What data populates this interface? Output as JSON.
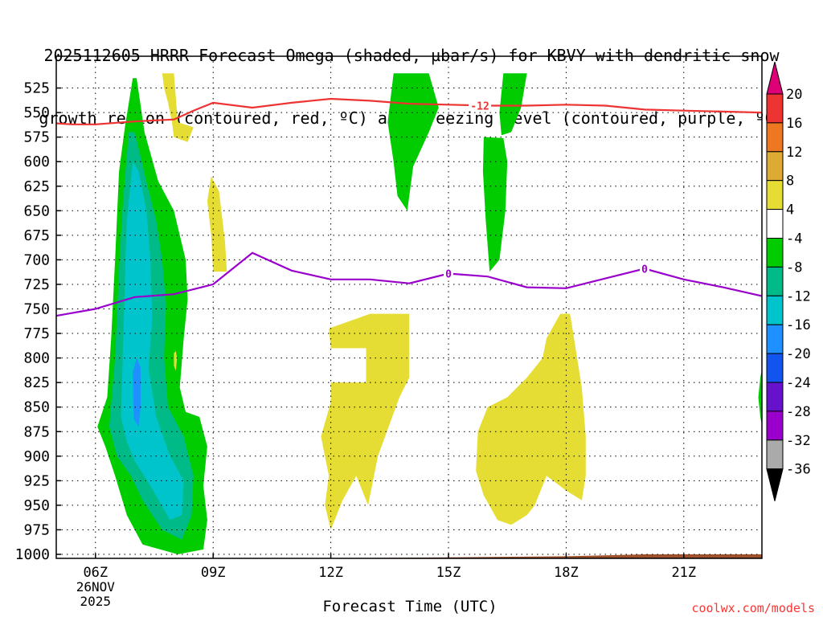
{
  "title": {
    "line1": "2025112605 HRRR Forecast Omega (shaded, µbar/s) for KBVY with dendritic snow",
    "line2": "growth region (contoured, red, ºC) and freezing level (contoured, purple, ºC)"
  },
  "footer": {
    "x_axis_title": "Forecast Time (UTC)",
    "credit": "coolwx.com/models"
  },
  "colors": {
    "dendritic_line": "#ee3333",
    "freezing_line": "#9900cc",
    "terrain": "#a0522d",
    "shade_yellow": "#e5dd33",
    "shade_green": "#00cc00",
    "shade_teal": "#00bb88",
    "shade_cyan": "#00c4cc",
    "shade_blue": "#1e90ff"
  },
  "chart_data": {
    "type": "time-height contour",
    "x_unit": "hour offset from 05Z 26NOV2025",
    "y_unit": "hPa",
    "xlim": [
      0,
      18
    ],
    "ylim": [
      1010,
      510
    ],
    "x_ticks": [
      {
        "h": 1,
        "label": "06Z",
        "sub1": "26NOV",
        "sub2": "2025"
      },
      {
        "h": 4,
        "label": "09Z"
      },
      {
        "h": 7,
        "label": "12Z"
      },
      {
        "h": 10,
        "label": "15Z"
      },
      {
        "h": 13,
        "label": "18Z"
      },
      {
        "h": 16,
        "label": "21Z"
      }
    ],
    "y_ticks": [
      525,
      550,
      575,
      600,
      625,
      650,
      675,
      700,
      725,
      750,
      775,
      800,
      825,
      850,
      875,
      900,
      925,
      950,
      975,
      1000
    ],
    "colorbar": {
      "label": "Omega (µbar/s)",
      "labels": [
        "20",
        "16",
        "12",
        "8",
        "4",
        "-4",
        "-8",
        "-12",
        "-16",
        "-20",
        "-24",
        "-28",
        "-32",
        "-36"
      ],
      "bins": [
        {
          "color": "#ee3333"
        },
        {
          "color": "#ee7722"
        },
        {
          "color": "#ddaa33"
        },
        {
          "color": "#e5dd33"
        },
        {
          "color": "#ffffff"
        },
        {
          "color": "#00cc00"
        },
        {
          "color": "#00bb88"
        },
        {
          "color": "#00c4cc"
        },
        {
          "color": "#1e90ff"
        },
        {
          "color": "#1155ee"
        },
        {
          "color": "#6611cc"
        },
        {
          "color": "#9900cc"
        },
        {
          "color": "#aaaaaa"
        }
      ],
      "top_color": "#dd0077",
      "bottom_color": "#000000"
    },
    "dendritic_line": {
      "label": "-12",
      "label_at": 10.8,
      "points": [
        [
          0,
          561
        ],
        [
          0.4,
          562
        ],
        [
          1.0,
          562
        ],
        [
          2.0,
          559
        ],
        [
          3.0,
          557
        ],
        [
          3.5,
          548
        ],
        [
          4.0,
          540
        ],
        [
          5.0,
          545
        ],
        [
          6.0,
          540
        ],
        [
          7.0,
          536
        ],
        [
          8.0,
          538
        ],
        [
          9.0,
          541
        ],
        [
          10.0,
          542
        ],
        [
          11.0,
          543
        ],
        [
          12.0,
          543
        ],
        [
          13.0,
          542
        ],
        [
          14.0,
          543
        ],
        [
          15.0,
          547
        ],
        [
          16.0,
          548
        ],
        [
          17.0,
          549
        ],
        [
          18.0,
          550
        ]
      ]
    },
    "freezing_line": {
      "label": "0",
      "label_at": [
        10.0,
        15.0
      ],
      "points": [
        [
          0,
          757
        ],
        [
          1.0,
          750
        ],
        [
          2.0,
          738
        ],
        [
          3.0,
          735
        ],
        [
          4.0,
          725
        ],
        [
          5.0,
          693
        ],
        [
          6.0,
          711
        ],
        [
          7.0,
          720
        ],
        [
          8.0,
          720
        ],
        [
          9.0,
          724
        ],
        [
          10.0,
          714
        ],
        [
          11.0,
          717
        ],
        [
          12.0,
          728
        ],
        [
          13.0,
          729
        ],
        [
          14.0,
          719
        ],
        [
          15.0,
          709
        ],
        [
          16.0,
          720
        ],
        [
          17.0,
          728
        ],
        [
          18.0,
          737
        ]
      ]
    },
    "terrain": {
      "points": [
        [
          0,
          1006
        ],
        [
          3.0,
          1005
        ],
        [
          4.0,
          1004
        ],
        [
          7.0,
          1004
        ],
        [
          10.0,
          1003
        ],
        [
          13.0,
          1002
        ],
        [
          15.0,
          1000
        ],
        [
          18.0,
          1000
        ]
      ]
    },
    "regions": [
      {
        "color": "#00cc00",
        "points": [
          [
            1.05,
            870
          ],
          [
            1.3,
            840
          ],
          [
            1.4,
            780
          ],
          [
            1.5,
            700
          ],
          [
            1.6,
            610
          ],
          [
            1.75,
            565
          ],
          [
            1.95,
            515
          ],
          [
            2.05,
            515
          ],
          [
            2.25,
            570
          ],
          [
            2.6,
            620
          ],
          [
            3.0,
            650
          ],
          [
            3.3,
            700
          ],
          [
            3.35,
            740
          ],
          [
            3.25,
            780
          ],
          [
            3.15,
            830
          ],
          [
            3.3,
            855
          ],
          [
            3.65,
            860
          ],
          [
            3.85,
            890
          ],
          [
            3.75,
            930
          ],
          [
            3.85,
            965
          ],
          [
            3.75,
            995
          ],
          [
            3.1,
            1000
          ],
          [
            2.2,
            990
          ],
          [
            1.8,
            960
          ],
          [
            1.5,
            920
          ],
          [
            1.25,
            890
          ]
        ]
      },
      {
        "color": "#00bb88",
        "points": [
          [
            1.35,
            870
          ],
          [
            1.5,
            800
          ],
          [
            1.6,
            710
          ],
          [
            1.7,
            640
          ],
          [
            1.85,
            570
          ],
          [
            2.0,
            570
          ],
          [
            2.3,
            620
          ],
          [
            2.55,
            660
          ],
          [
            2.7,
            700
          ],
          [
            2.8,
            745
          ],
          [
            2.75,
            800
          ],
          [
            2.85,
            850
          ],
          [
            3.25,
            880
          ],
          [
            3.5,
            920
          ],
          [
            3.45,
            960
          ],
          [
            3.2,
            985
          ],
          [
            2.7,
            975
          ],
          [
            2.2,
            945
          ],
          [
            1.9,
            920
          ],
          [
            1.55,
            900
          ]
        ]
      },
      {
        "color": "#00c4cc",
        "points": [
          [
            1.65,
            860
          ],
          [
            1.7,
            790
          ],
          [
            1.75,
            720
          ],
          [
            1.8,
            660
          ],
          [
            1.95,
            600
          ],
          [
            2.1,
            610
          ],
          [
            2.3,
            650
          ],
          [
            2.4,
            700
          ],
          [
            2.45,
            760
          ],
          [
            2.35,
            810
          ],
          [
            2.55,
            860
          ],
          [
            2.9,
            900
          ],
          [
            3.25,
            925
          ],
          [
            3.2,
            960
          ],
          [
            2.9,
            965
          ],
          [
            2.4,
            930
          ],
          [
            2.0,
            905
          ],
          [
            1.8,
            885
          ]
        ]
      },
      {
        "color": "#1e90ff",
        "points": [
          [
            1.95,
            815
          ],
          [
            2.05,
            800
          ],
          [
            2.15,
            810
          ],
          [
            2.15,
            850
          ],
          [
            2.1,
            870
          ],
          [
            1.98,
            862
          ]
        ]
      },
      {
        "color": "#e5dd33",
        "points": [
          [
            2.7,
            510
          ],
          [
            3.0,
            510
          ],
          [
            3.05,
            535
          ],
          [
            3.1,
            560
          ],
          [
            3.5,
            565
          ],
          [
            3.35,
            580
          ],
          [
            3.0,
            575
          ],
          [
            2.95,
            560
          ],
          [
            2.85,
            540
          ],
          [
            2.75,
            525
          ]
        ]
      },
      {
        "color": "#e5dd33",
        "points": [
          [
            3.85,
            640
          ],
          [
            3.95,
            615
          ],
          [
            4.15,
            630
          ],
          [
            4.3,
            680
          ],
          [
            4.35,
            712
          ],
          [
            4.0,
            712
          ],
          [
            3.95,
            675
          ]
        ]
      },
      {
        "color": "#e5dd33",
        "points": [
          [
            3.0,
            795
          ],
          [
            3.05,
            793
          ],
          [
            3.08,
            800
          ],
          [
            3.05,
            813
          ],
          [
            3.0,
            808
          ]
        ]
      },
      {
        "color": "#00cc00",
        "points": [
          [
            8.6,
            510
          ],
          [
            9.5,
            510
          ],
          [
            9.75,
            545
          ],
          [
            9.5,
            570
          ],
          [
            9.1,
            605
          ],
          [
            8.95,
            650
          ],
          [
            8.7,
            635
          ],
          [
            8.6,
            600
          ],
          [
            8.45,
            560
          ]
        ]
      },
      {
        "color": "#00cc00",
        "points": [
          [
            11.4,
            510
          ],
          [
            12.0,
            510
          ],
          [
            11.85,
            545
          ],
          [
            11.6,
            570
          ],
          [
            11.35,
            573
          ],
          [
            11.3,
            550
          ]
        ]
      },
      {
        "color": "#00cc00",
        "points": [
          [
            10.9,
            575
          ],
          [
            11.4,
            576
          ],
          [
            11.5,
            600
          ],
          [
            11.45,
            650
          ],
          [
            11.3,
            700
          ],
          [
            11.05,
            712
          ],
          [
            10.95,
            660
          ],
          [
            10.88,
            610
          ]
        ]
      },
      {
        "color": "#00cc00",
        "points": [
          [
            17.95,
            820
          ],
          [
            18.0,
            810
          ],
          [
            18.0,
            870
          ],
          [
            17.95,
            860
          ],
          [
            17.9,
            840
          ]
        ]
      },
      {
        "color": "#e5dd33",
        "points": [
          [
            8.0,
            755
          ],
          [
            9.0,
            755
          ],
          [
            9.0,
            820
          ],
          [
            8.75,
            840
          ],
          [
            8.2,
            900
          ],
          [
            8.0,
            940
          ],
          [
            7.95,
            950
          ],
          [
            7.65,
            920
          ],
          [
            7.3,
            945
          ],
          [
            7.0,
            975
          ],
          [
            6.85,
            950
          ],
          [
            6.95,
            920
          ],
          [
            6.75,
            880
          ],
          [
            7.0,
            845
          ],
          [
            7.0,
            825
          ],
          [
            7.9,
            825
          ],
          [
            7.9,
            790
          ],
          [
            7.0,
            790
          ],
          [
            6.95,
            770
          ]
        ]
      },
      {
        "color": "#e5dd33",
        "points": [
          [
            12.85,
            755
          ],
          [
            13.1,
            755
          ],
          [
            13.4,
            830
          ],
          [
            13.5,
            880
          ],
          [
            13.5,
            920
          ],
          [
            13.4,
            945
          ],
          [
            13.0,
            935
          ],
          [
            12.5,
            920
          ],
          [
            12.2,
            950
          ],
          [
            12.0,
            960
          ],
          [
            11.6,
            970
          ],
          [
            11.25,
            965
          ],
          [
            10.9,
            940
          ],
          [
            10.7,
            915
          ],
          [
            10.75,
            875
          ],
          [
            11.0,
            850
          ],
          [
            11.5,
            840
          ],
          [
            12.0,
            820
          ],
          [
            12.4,
            800
          ],
          [
            12.5,
            780
          ]
        ]
      }
    ]
  }
}
